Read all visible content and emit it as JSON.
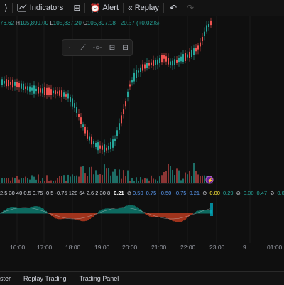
{
  "toolbar": {
    "indicators_label": "Indicators",
    "alert_label": "Alert",
    "replay_label": "Replay"
  },
  "ohlc": {
    "open_value": "76.62",
    "high_key": "H",
    "high_value": "105,899.00",
    "low_key": "L",
    "low_value": "105,837.20",
    "close_key": "C",
    "close_value": "105,897.18",
    "change": "+20.57 (+0.02%)"
  },
  "indicator_values": {
    "left": "2.5  30  40  0.5  0.75  -0.5  -0.75  128  64  2.6  2  30  8",
    "highlight": "0.21",
    "right": [
      {
        "text": "0.50",
        "color": "#5b9cf6"
      },
      {
        "text": "0.75",
        "color": "#5b9cf6"
      },
      {
        "text": "-0.50",
        "color": "#5b9cf6"
      },
      {
        "text": "-0.75",
        "color": "#5b9cf6"
      },
      {
        "text": "0.21",
        "color": "#5b9cf6"
      },
      {
        "text": "0.00",
        "color": "#ffeb3b"
      },
      {
        "text": "0.29",
        "color": "#26a69a"
      },
      {
        "text": "0.00",
        "color": "#26a69a"
      },
      {
        "text": "0.47",
        "color": "#26a69a"
      },
      {
        "text": "0.00",
        "color": "#26a69a"
      }
    ]
  },
  "time_axis": [
    "16:00",
    "17:00",
    "18:00",
    "19:00",
    "20:00",
    "21:00",
    "22:00",
    "23:00",
    "9",
    "01:00"
  ],
  "bottom_tabs": [
    "ster",
    "Replay Trading",
    "Trading Panel"
  ],
  "colors": {
    "up": "#26a69a",
    "down": "#ef5350",
    "bg": "#0f0f0f",
    "accent": "#2962ff",
    "lightning": "#9c27b0"
  }
}
